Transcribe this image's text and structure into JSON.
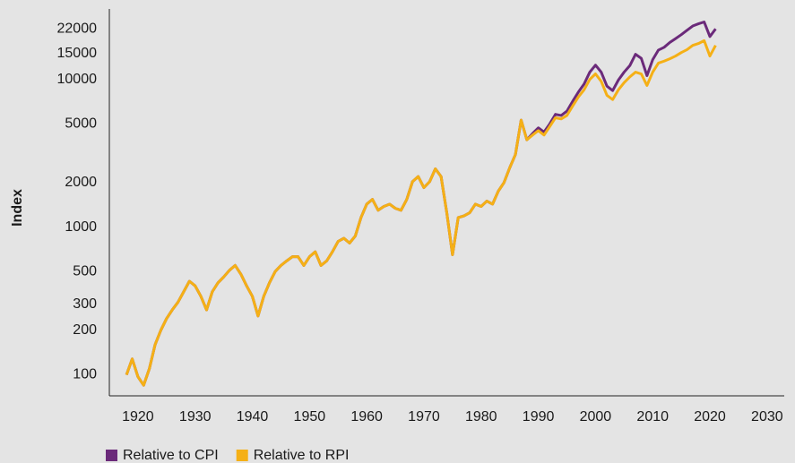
{
  "chart_data": {
    "type": "line",
    "ylabel": "Index",
    "log_y": true,
    "grid": false,
    "xlim": [
      1915,
      2033
    ],
    "xticks": [
      1920,
      1930,
      1940,
      1950,
      1960,
      1970,
      1980,
      1990,
      2000,
      2010,
      2020,
      2030
    ],
    "ylim": [
      72,
      30000
    ],
    "yticks": [
      100,
      200,
      300,
      500,
      1000,
      2000,
      5000,
      10000,
      15000,
      22000
    ],
    "x": [
      1918,
      1919,
      1920,
      1921,
      1922,
      1923,
      1924,
      1925,
      1926,
      1927,
      1928,
      1929,
      1930,
      1931,
      1932,
      1933,
      1934,
      1935,
      1936,
      1937,
      1938,
      1939,
      1940,
      1941,
      1942,
      1943,
      1944,
      1945,
      1946,
      1947,
      1948,
      1949,
      1950,
      1951,
      1952,
      1953,
      1954,
      1955,
      1956,
      1957,
      1958,
      1959,
      1960,
      1961,
      1962,
      1963,
      1964,
      1965,
      1966,
      1967,
      1968,
      1969,
      1970,
      1971,
      1972,
      1973,
      1974,
      1975,
      1976,
      1977,
      1978,
      1979,
      1980,
      1981,
      1982,
      1983,
      1984,
      1985,
      1986,
      1987,
      1988,
      1989,
      1990,
      1991,
      1992,
      1993,
      1994,
      1995,
      1996,
      1997,
      1998,
      1999,
      2000,
      2001,
      2002,
      2003,
      2004,
      2005,
      2006,
      2007,
      2008,
      2009,
      2010,
      2011,
      2012,
      2013,
      2014,
      2015,
      2016,
      2017,
      2018,
      2019,
      2020,
      2021
    ],
    "series": [
      {
        "name": "Relative to CPI",
        "color": "#6b2a7a",
        "values": [
          100,
          128,
          97,
          85,
          110,
          160,
          200,
          240,
          275,
          310,
          365,
          430,
          400,
          340,
          275,
          365,
          420,
          460,
          510,
          550,
          480,
          400,
          340,
          250,
          340,
          420,
          500,
          550,
          590,
          630,
          630,
          550,
          630,
          680,
          550,
          590,
          680,
          800,
          840,
          780,
          870,
          1160,
          1430,
          1540,
          1300,
          1380,
          1430,
          1340,
          1300,
          1540,
          2030,
          2200,
          1850,
          2030,
          2480,
          2200,
          1250,
          650,
          1160,
          1190,
          1250,
          1430,
          1380,
          1500,
          1430,
          1750,
          2000,
          2520,
          3100,
          5300,
          3900,
          4300,
          4700,
          4400,
          5000,
          5800,
          5700,
          6100,
          7100,
          8200,
          9300,
          11200,
          12500,
          11200,
          9000,
          8400,
          9900,
          11200,
          12400,
          14800,
          13900,
          10600,
          13600,
          15800,
          16500,
          17800,
          18900,
          20100,
          21500,
          23000,
          23800,
          24500,
          19500,
          22000
        ]
      },
      {
        "name": "Relative to RPI",
        "color": "#f5b016",
        "values": [
          100,
          128,
          97,
          85,
          110,
          160,
          200,
          240,
          275,
          310,
          365,
          430,
          400,
          340,
          275,
          365,
          420,
          460,
          510,
          550,
          480,
          400,
          340,
          250,
          340,
          420,
          500,
          550,
          590,
          630,
          630,
          550,
          630,
          680,
          550,
          590,
          680,
          800,
          840,
          780,
          870,
          1160,
          1430,
          1540,
          1300,
          1380,
          1430,
          1340,
          1300,
          1540,
          2030,
          2200,
          1850,
          2030,
          2480,
          2200,
          1250,
          650,
          1160,
          1190,
          1250,
          1430,
          1380,
          1500,
          1430,
          1750,
          2000,
          2520,
          3100,
          5300,
          3900,
          4200,
          4500,
          4200,
          4800,
          5500,
          5400,
          5700,
          6600,
          7600,
          8500,
          10000,
          10900,
          9700,
          7800,
          7300,
          8500,
          9500,
          10400,
          11200,
          10900,
          9100,
          11200,
          12900,
          13300,
          13800,
          14400,
          15200,
          15900,
          17000,
          17500,
          18300,
          14400,
          17000
        ]
      }
    ]
  }
}
